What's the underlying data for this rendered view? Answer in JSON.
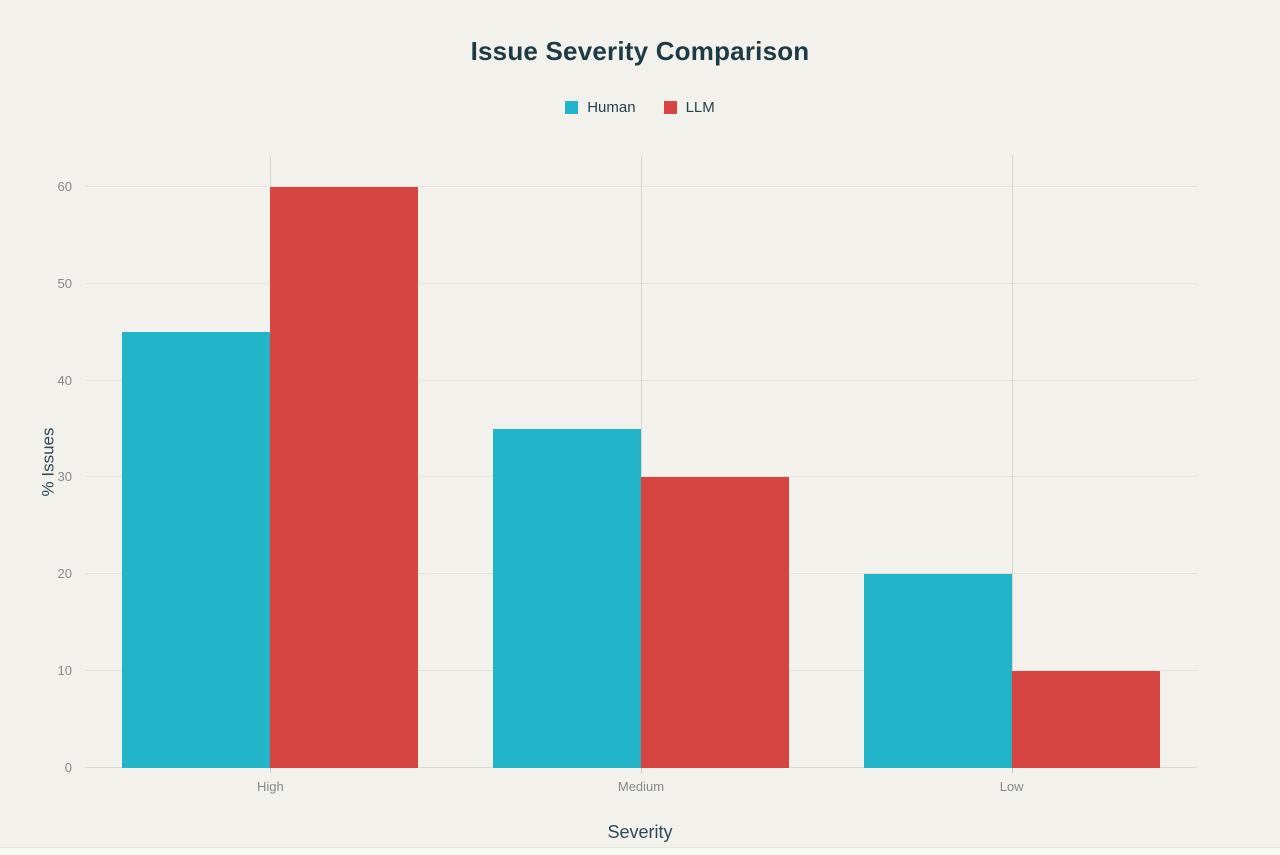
{
  "page": {
    "background": "#f2f1ec"
  },
  "chart_data": {
    "type": "bar",
    "title": "Issue Severity Comparison",
    "categories": [
      "High",
      "Medium",
      "Low"
    ],
    "series": [
      {
        "name": "Human",
        "color": "#22b4c8",
        "values": [
          45,
          35,
          20
        ]
      },
      {
        "name": "LLM",
        "color": "#d74542",
        "values": [
          60,
          30,
          10
        ]
      }
    ],
    "xlabel": "Severity",
    "ylabel": "% Issues",
    "ylim": [
      0,
      63.3
    ],
    "yticks": [
      0,
      10,
      20,
      30,
      40,
      50,
      60
    ],
    "grid": true,
    "legend_position": "top"
  }
}
